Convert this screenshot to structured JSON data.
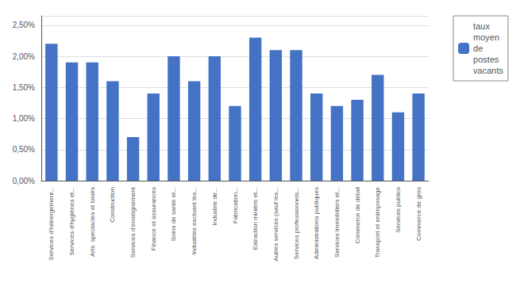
{
  "chart_data": {
    "type": "bar",
    "categories": [
      "Services d'hébergement...",
      "Services d'hygiénes et...",
      "Arts  spectacles et loisirs",
      "Construction",
      "Services d'enseignement",
      "Finance et assurances",
      "Soins de santé et...",
      "Industries excluant les...",
      "Industrie de...",
      "Fabrication...",
      "Extraction minière et...",
      "Autres services (sauf les...",
      "Services professionnels...",
      "Administrations publiques",
      "Services immobiliers et...",
      "Commerce de détail",
      "Transport et entreposage",
      "Services publics",
      "Commerce de gros"
    ],
    "series": [
      {
        "name": "taux\nmoyen\nde\npostes\nvacants",
        "color": "#4472C4",
        "values": [
          0.022,
          0.019,
          0.019,
          0.016,
          0.007,
          0.014,
          0.02,
          0.016,
          0.02,
          0.012,
          0.023,
          0.021,
          0.021,
          0.014,
          0.012,
          0.013,
          0.017,
          0.011,
          0.014
        ]
      }
    ],
    "ylim": [
      0.0,
      0.0265
    ],
    "yticks": [
      {
        "value": 0.0,
        "label": "0,00%"
      },
      {
        "value": 0.005,
        "label": "0,50%"
      },
      {
        "value": 0.01,
        "label": "1,00%"
      },
      {
        "value": 0.015,
        "label": "1,50%"
      },
      {
        "value": 0.02,
        "label": "2,00%"
      },
      {
        "value": 0.025,
        "label": "2,50%"
      }
    ],
    "grid": true,
    "legend": "upper right"
  }
}
